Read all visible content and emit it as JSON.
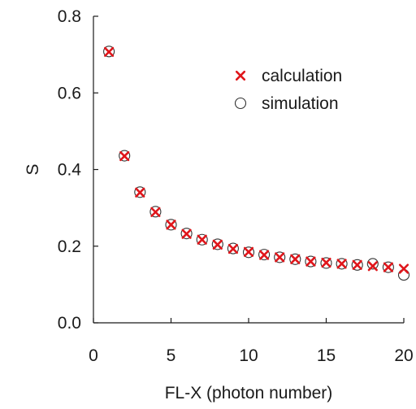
{
  "chart_data": {
    "type": "scatter",
    "xlabel": "FL-X (photon number)",
    "ylabel": "S",
    "xlim": [
      0,
      20
    ],
    "ylim": [
      0.0,
      0.8
    ],
    "xticks": [
      "0",
      "5",
      "10",
      "15",
      "20"
    ],
    "yticks": [
      "0.0",
      "0.2",
      "0.4",
      "0.6",
      "0.8"
    ],
    "grid": false,
    "legend_position": "top-right",
    "series": [
      {
        "name": "calculation",
        "marker": "x",
        "color": "#e0161b",
        "x": [
          1,
          2,
          3,
          4,
          5,
          6,
          7,
          8,
          9,
          10,
          11,
          12,
          13,
          14,
          15,
          16,
          17,
          18,
          19,
          20
        ],
        "y": [
          0.707,
          0.435,
          0.34,
          0.289,
          0.256,
          0.232,
          0.217,
          0.204,
          0.193,
          0.185,
          0.177,
          0.171,
          0.166,
          0.16,
          0.157,
          0.154,
          0.151,
          0.148,
          0.145,
          0.141
        ]
      },
      {
        "name": "simulation",
        "marker": "o",
        "color": "#333333",
        "x": [
          1,
          2,
          3,
          4,
          5,
          6,
          7,
          8,
          9,
          10,
          11,
          12,
          13,
          14,
          15,
          16,
          17,
          18,
          19,
          20
        ],
        "y": [
          0.708,
          0.436,
          0.341,
          0.29,
          0.256,
          0.233,
          0.217,
          0.205,
          0.194,
          0.184,
          0.178,
          0.171,
          0.166,
          0.16,
          0.156,
          0.154,
          0.151,
          0.154,
          0.145,
          0.125
        ]
      }
    ]
  }
}
